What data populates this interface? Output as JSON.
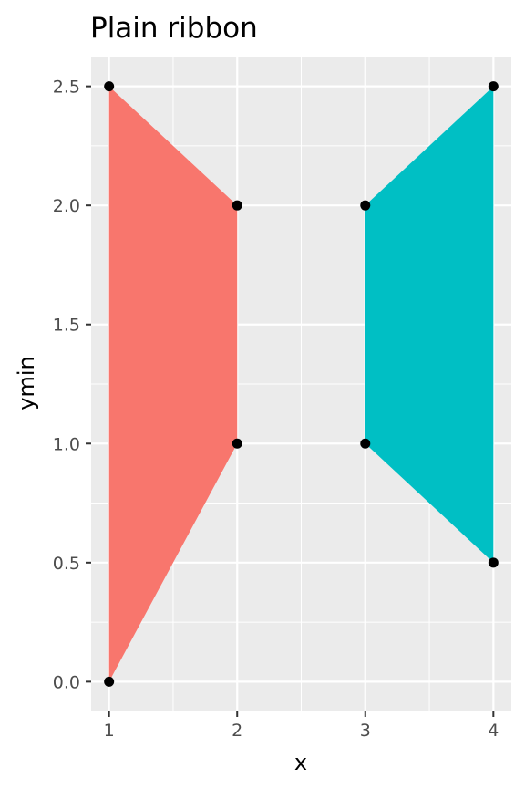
{
  "chart_data": {
    "type": "area",
    "title": "Plain ribbon",
    "xlabel": "x",
    "ylabel": "ymin",
    "xlim": [
      0.86,
      4.14
    ],
    "ylim": [
      -0.125,
      2.625
    ],
    "x_ticks": [
      "1",
      "2",
      "3",
      "4"
    ],
    "y_ticks": [
      "0.0",
      "0.5",
      "1.0",
      "1.5",
      "2.0",
      "2.5"
    ],
    "grid": true,
    "legend": "none",
    "panel_background": "#ebebeb",
    "grid_color": "#ffffff",
    "series": [
      {
        "x": [
          1,
          2
        ],
        "ymin": [
          0,
          1
        ],
        "ymax": [
          2.5,
          2
        ],
        "color": "#f8766d"
      },
      {
        "x": [
          3,
          4
        ],
        "ymin": [
          1,
          0.5
        ],
        "ymax": [
          2,
          2.5
        ],
        "color": "#00bfc4"
      }
    ],
    "points": [
      {
        "x": 1,
        "y": 0
      },
      {
        "x": 1,
        "y": 2.5
      },
      {
        "x": 2,
        "y": 1
      },
      {
        "x": 2,
        "y": 2
      },
      {
        "x": 3,
        "y": 1
      },
      {
        "x": 3,
        "y": 2
      },
      {
        "x": 4,
        "y": 0.5
      },
      {
        "x": 4,
        "y": 2.5
      }
    ],
    "point_color": "#000000"
  }
}
